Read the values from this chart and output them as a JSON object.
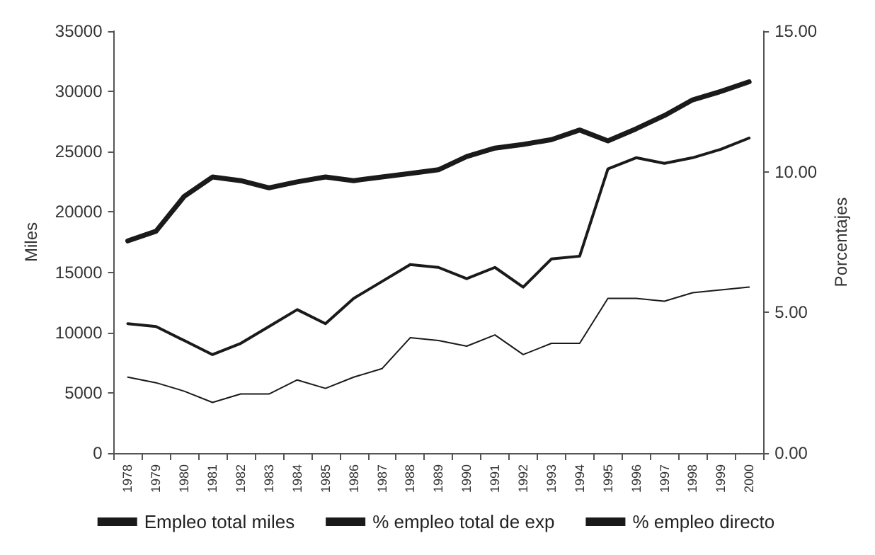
{
  "chart_data": {
    "type": "line",
    "ylabel": "Miles",
    "y2label": "Porcentajes",
    "categories": [
      "1978",
      "1979",
      "1980",
      "1981",
      "1982",
      "1983",
      "1984",
      "1985",
      "1986",
      "1987",
      "1988",
      "1989",
      "1990",
      "1991",
      "1992",
      "1993",
      "1994",
      "1995",
      "1996",
      "1997",
      "1998",
      "1999",
      "2000"
    ],
    "series": [
      {
        "name": "Empleo total miles",
        "color": "#1a1a1a",
        "values": [
          17600,
          18400,
          21300,
          22900,
          22600,
          22000,
          22500,
          22900,
          22600,
          22900,
          23200,
          23500,
          24600,
          25300,
          25600,
          26000,
          26800,
          25900,
          26900,
          28000,
          29300,
          30000,
          30800
        ]
      },
      {
        "name": "% empleo total de exp",
        "color": "#1a1a1a",
        "axis": "y2",
        "values": [
          4.6,
          4.5,
          4.0,
          3.5,
          3.9,
          4.5,
          5.1,
          4.6,
          5.5,
          6.1,
          6.7,
          6.6,
          6.2,
          6.6,
          5.9,
          6.9,
          7.0,
          10.1,
          10.5,
          10.3,
          10.5,
          10.8,
          11.2
        ]
      },
      {
        "name": "% empleo directo",
        "color": "#1a1a1a",
        "axis": "y2",
        "values": [
          2.7,
          2.5,
          2.2,
          1.8,
          2.1,
          2.1,
          2.6,
          2.3,
          2.7,
          3.0,
          4.1,
          4.0,
          3.8,
          4.2,
          3.5,
          3.9,
          3.9,
          5.5,
          5.5,
          5.4,
          5.7,
          5.8,
          5.9
        ]
      }
    ],
    "ylim": [
      0,
      35000
    ],
    "yticks": [
      0,
      5000,
      10000,
      15000,
      20000,
      25000,
      30000,
      35000
    ],
    "y2lim": [
      0,
      15
    ],
    "y2ticks": [
      {
        "value": 0,
        "label": "0.00"
      },
      {
        "value": 5,
        "label": "5.00"
      },
      {
        "value": 10,
        "label": "10.00"
      },
      {
        "value": 15,
        "label": "15.00"
      }
    ],
    "grid": false,
    "legend": "bottom",
    "marker": "none",
    "line_style": "solid"
  }
}
